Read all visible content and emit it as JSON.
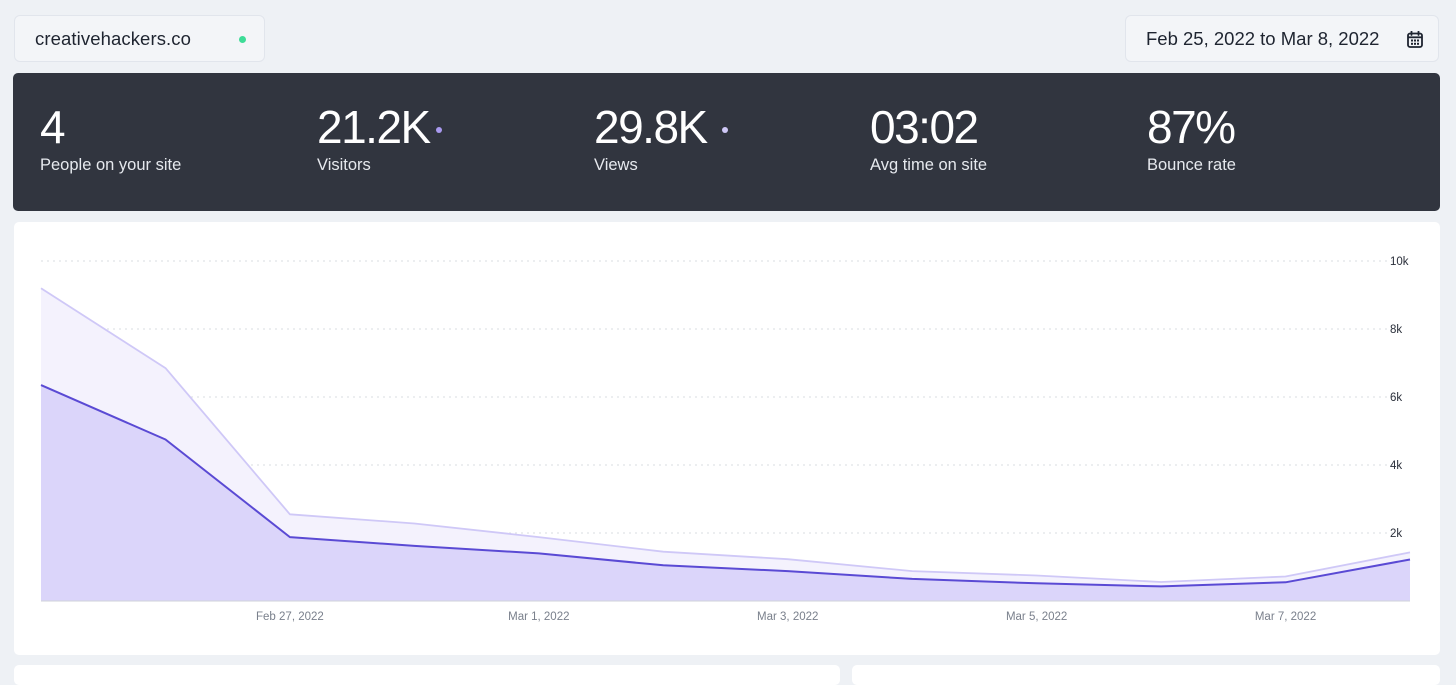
{
  "site": {
    "name": "creativehackers.co",
    "status_color": "#3ddc97"
  },
  "date_picker": {
    "range": "Feb 25, 2022 to Mar 8, 2022",
    "icon": "calendar-icon"
  },
  "theme": {
    "stats_bg": "#31353f",
    "visitors_color": "#5a4ad4",
    "views_color": "#cfc8f7",
    "visitors_fill": "#dbd5fa",
    "views_fill": "#f4f2fd"
  },
  "stats": [
    {
      "value": "4",
      "label": "People on your site"
    },
    {
      "value": "21.2K",
      "label": "Visitors",
      "dot_color": "#a99af0"
    },
    {
      "value": "29.8K",
      "label": "Views",
      "dot_color": "#cfc8f7"
    },
    {
      "value": "03:02",
      "label": "Avg time on site"
    },
    {
      "value": "87%",
      "label": "Bounce rate"
    }
  ],
  "chart_data": {
    "type": "area",
    "x": [
      "Feb 25, 2022",
      "Feb 26, 2022",
      "Feb 27, 2022",
      "Feb 28, 2022",
      "Mar 1, 2022",
      "Mar 2, 2022",
      "Mar 3, 2022",
      "Mar 4, 2022",
      "Mar 5, 2022",
      "Mar 6, 2022",
      "Mar 7, 2022",
      "Mar 8, 2022"
    ],
    "x_tick_labels": [
      "Feb 27, 2022",
      "Mar 1, 2022",
      "Mar 3, 2022",
      "Mar 5, 2022",
      "Mar 7, 2022"
    ],
    "x_tick_indices": [
      2,
      4,
      6,
      8,
      10
    ],
    "series": [
      {
        "values": [
          9200,
          6850,
          2550,
          2280,
          1880,
          1450,
          1230,
          880,
          750,
          560,
          720,
          1430
        ]
      },
      {
        "values": [
          6350,
          4750,
          1880,
          1620,
          1400,
          1050,
          880,
          650,
          520,
          430,
          550,
          1220
        ]
      }
    ],
    "ylim": [
      0,
      10000
    ],
    "y_ticks": [
      2000,
      4000,
      6000,
      8000,
      10000
    ],
    "y_tick_labels": [
      "2k",
      "4k",
      "6k",
      "8k",
      "10k"
    ],
    "grid": true,
    "y_axis_side": "right"
  }
}
